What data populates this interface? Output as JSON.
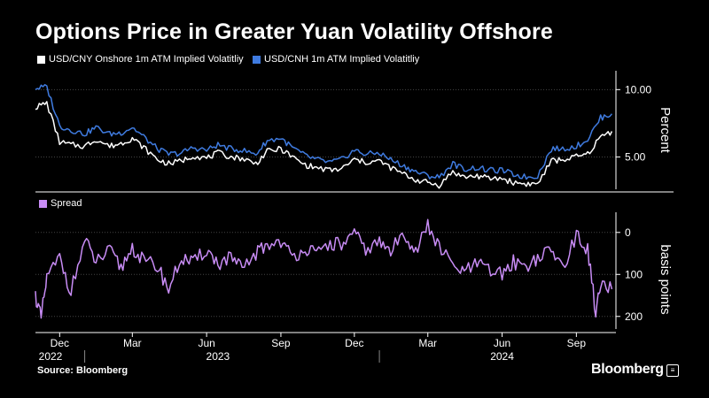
{
  "title": "Options Price in Greater Yuan Volatility Offshore",
  "source": "Source: Bloomberg",
  "brand": "Bloomberg",
  "colors": {
    "onshore": "#ffffff",
    "offshore": "#3f7be0",
    "spread": "#c88cf5",
    "grid": "#444444"
  },
  "chart_data": [
    {
      "type": "line",
      "x_range": [
        "2022-11-01",
        "2024-10-20"
      ],
      "ylabel": "Percent",
      "ylim": [
        2.6,
        11.4
      ],
      "yticks": [
        5.0,
        10.0
      ],
      "ytick_labels": [
        "5.00",
        "10.00"
      ],
      "grid": true,
      "legend": "top-left",
      "series": [
        {
          "name": "USD/CNY Onshore 1m ATM Implied Volatitliy",
          "x": [
            "2022-11-01",
            "2022-11-15",
            "2022-12-01",
            "2022-12-15",
            "2023-01-01",
            "2023-01-15",
            "2023-02-01",
            "2023-02-15",
            "2023-03-01",
            "2023-03-15",
            "2023-04-01",
            "2023-04-15",
            "2023-05-01",
            "2023-05-15",
            "2023-06-01",
            "2023-06-15",
            "2023-07-01",
            "2023-07-15",
            "2023-08-01",
            "2023-08-15",
            "2023-09-01",
            "2023-09-15",
            "2023-10-01",
            "2023-10-15",
            "2023-11-01",
            "2023-11-15",
            "2023-12-01",
            "2023-12-15",
            "2024-01-01",
            "2024-01-15",
            "2024-02-01",
            "2024-02-15",
            "2024-03-01",
            "2024-03-15",
            "2024-04-01",
            "2024-04-15",
            "2024-05-01",
            "2024-05-15",
            "2024-06-01",
            "2024-06-15",
            "2024-07-01",
            "2024-07-15",
            "2024-08-01",
            "2024-08-15",
            "2024-09-01",
            "2024-09-15",
            "2024-10-01",
            "2024-10-15"
          ],
          "values": [
            8.7,
            9.0,
            6.1,
            5.9,
            5.8,
            6.3,
            5.8,
            6.0,
            6.4,
            5.7,
            4.8,
            4.5,
            4.7,
            5.1,
            4.9,
            5.3,
            5.0,
            4.9,
            4.5,
            5.4,
            5.6,
            5.0,
            4.4,
            4.2,
            4.0,
            4.1,
            4.8,
            4.6,
            4.7,
            4.2,
            3.7,
            3.3,
            3.1,
            2.9,
            3.9,
            3.5,
            3.6,
            3.4,
            3.4,
            3.1,
            3.0,
            3.0,
            4.7,
            4.8,
            5.0,
            5.2,
            6.5,
            6.9
          ]
        },
        {
          "name": "USD/CNH 1m ATM Implied Volatitliy",
          "x": [
            "2022-11-01",
            "2022-11-15",
            "2022-12-01",
            "2022-12-15",
            "2023-01-01",
            "2023-01-15",
            "2023-02-01",
            "2023-02-15",
            "2023-03-01",
            "2023-03-15",
            "2023-04-01",
            "2023-04-15",
            "2023-05-01",
            "2023-05-15",
            "2023-06-01",
            "2023-06-15",
            "2023-07-01",
            "2023-07-15",
            "2023-08-01",
            "2023-08-15",
            "2023-09-01",
            "2023-09-15",
            "2023-10-01",
            "2023-10-15",
            "2023-11-01",
            "2023-11-15",
            "2023-12-01",
            "2023-12-15",
            "2024-01-01",
            "2024-01-15",
            "2024-02-01",
            "2024-02-15",
            "2024-03-01",
            "2024-03-15",
            "2024-04-01",
            "2024-04-15",
            "2024-05-01",
            "2024-05-15",
            "2024-06-01",
            "2024-06-15",
            "2024-07-01",
            "2024-07-15",
            "2024-08-01",
            "2024-08-15",
            "2024-09-01",
            "2024-09-15",
            "2024-10-01",
            "2024-10-15"
          ],
          "values": [
            10.1,
            10.2,
            7.3,
            7.0,
            6.7,
            7.2,
            6.7,
            6.8,
            7.2,
            6.5,
            5.6,
            5.2,
            5.3,
            5.7,
            5.5,
            5.9,
            5.6,
            5.5,
            5.2,
            6.2,
            6.4,
            5.7,
            5.1,
            4.8,
            4.6,
            4.8,
            5.5,
            5.2,
            5.3,
            4.8,
            4.3,
            3.9,
            3.6,
            3.5,
            4.5,
            4.1,
            4.2,
            4.0,
            4.0,
            3.7,
            3.5,
            3.6,
            5.6,
            5.6,
            5.8,
            6.3,
            7.9,
            8.2
          ]
        }
      ]
    },
    {
      "type": "line",
      "x_range": [
        "2022-11-01",
        "2024-10-20"
      ],
      "ylabel": "basis points",
      "ylim": [
        -230,
        48
      ],
      "yticks": [
        0,
        -100,
        -200
      ],
      "ytick_labels": [
        "0",
        "100",
        "200"
      ],
      "grid": true,
      "legend": "top-left",
      "series": [
        {
          "name": "Spread",
          "x": [
            "2022-11-01",
            "2022-11-08",
            "2022-11-15",
            "2022-12-01",
            "2022-12-15",
            "2023-01-01",
            "2023-01-15",
            "2023-02-01",
            "2023-02-15",
            "2023-03-01",
            "2023-03-15",
            "2023-04-01",
            "2023-04-15",
            "2023-05-01",
            "2023-05-15",
            "2023-06-01",
            "2023-06-15",
            "2023-07-01",
            "2023-07-15",
            "2023-08-01",
            "2023-08-15",
            "2023-09-01",
            "2023-09-15",
            "2023-10-01",
            "2023-10-15",
            "2023-11-01",
            "2023-11-15",
            "2023-12-01",
            "2023-12-15",
            "2024-01-01",
            "2024-01-15",
            "2024-02-01",
            "2024-02-15",
            "2024-03-01",
            "2024-03-15",
            "2024-04-01",
            "2024-04-15",
            "2024-05-01",
            "2024-05-15",
            "2024-06-01",
            "2024-06-15",
            "2024-07-01",
            "2024-07-15",
            "2024-08-01",
            "2024-08-15",
            "2024-09-01",
            "2024-09-15",
            "2024-09-25",
            "2024-10-01",
            "2024-10-15"
          ],
          "values": [
            -150,
            -205,
            -110,
            -60,
            -140,
            -20,
            -70,
            -45,
            -85,
            -35,
            -70,
            -80,
            -135,
            -60,
            -75,
            -40,
            -75,
            -60,
            -90,
            -50,
            -30,
            -20,
            -60,
            -35,
            -55,
            -25,
            -30,
            -5,
            -40,
            -25,
            -45,
            0,
            -45,
            15,
            -35,
            -80,
            -95,
            -75,
            -90,
            -100,
            -70,
            -80,
            -60,
            -45,
            -80,
            -10,
            -40,
            -190,
            -130,
            -135
          ]
        }
      ]
    }
  ],
  "x_axis": {
    "months": [
      {
        "label": "Dec",
        "date": "2022-12-01"
      },
      {
        "label": "Mar",
        "date": "2023-03-01"
      },
      {
        "label": "Jun",
        "date": "2023-06-01"
      },
      {
        "label": "Sep",
        "date": "2023-09-01"
      },
      {
        "label": "Dec",
        "date": "2023-12-01"
      },
      {
        "label": "Mar",
        "date": "2024-03-01"
      },
      {
        "label": "Jun",
        "date": "2024-06-01"
      },
      {
        "label": "Sep",
        "date": "2024-09-01"
      }
    ],
    "years": [
      {
        "label": "2022",
        "date": "2022-11-05"
      },
      {
        "label": "2023",
        "date": "2023-06-15"
      },
      {
        "label": "2024",
        "date": "2024-06-01"
      }
    ],
    "year_boundaries": [
      "2023-01-01",
      "2024-01-01"
    ]
  }
}
